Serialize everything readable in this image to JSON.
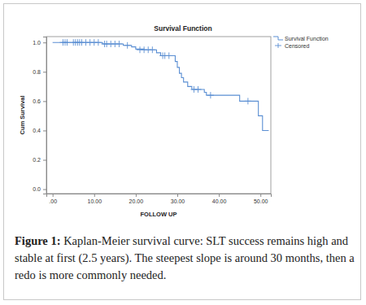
{
  "chart_data": {
    "type": "line",
    "title": "Survival Function",
    "x_label": "FOLLOW UP",
    "y_label": "Cum Survival",
    "xlim": [
      -1.5,
      52.5
    ],
    "ylim": [
      -0.03,
      1.04
    ],
    "xticks": [
      {
        "value": 0,
        "label": ".00"
      },
      {
        "value": 10,
        "label": "10.00"
      },
      {
        "value": 20,
        "label": "20.00"
      },
      {
        "value": 30,
        "label": "30.00"
      },
      {
        "value": 40,
        "label": "40.00"
      },
      {
        "value": 50,
        "label": "50.00"
      }
    ],
    "yticks": [
      {
        "value": 0,
        "label": "0.0"
      },
      {
        "value": 0.2,
        "label": "0.2"
      },
      {
        "value": 0.4,
        "label": "0.4"
      },
      {
        "value": 0.6,
        "label": "0.6"
      },
      {
        "value": 0.8,
        "label": "0.8"
      },
      {
        "value": 1,
        "label": "1.0"
      }
    ],
    "grid": false,
    "legend": "right",
    "series": [
      {
        "name": "Survival Function",
        "type": "line",
        "line_style": "step",
        "color": "#5b8fd3",
        "x": [
          0,
          12,
          17,
          19,
          20,
          22,
          25,
          26,
          29.5,
          30,
          30.5,
          31,
          31.5,
          32.5,
          33.5,
          36.5,
          37,
          45,
          49.5,
          50.5,
          52
        ],
        "values": [
          1,
          0.99,
          0.98,
          0.97,
          0.955,
          0.95,
          0.93,
          0.91,
          0.87,
          0.83,
          0.79,
          0.76,
          0.73,
          0.7,
          0.68,
          0.66,
          0.64,
          0.6,
          0.5,
          0.4,
          0.4
        ]
      },
      {
        "name": "Censored",
        "type": "scatter",
        "marker": "plus",
        "color": "#5b8fd3",
        "x": [
          2.5,
          3,
          3.5,
          5,
          5.5,
          6,
          6.5,
          7,
          8,
          9,
          10,
          11,
          12.5,
          13,
          14,
          15,
          16,
          18,
          21,
          22,
          23,
          24,
          26.5,
          27,
          28,
          34,
          35,
          38,
          47
        ],
        "values": [
          1,
          1,
          1,
          1,
          1,
          1,
          1,
          1,
          1,
          1,
          1,
          1,
          0.99,
          0.99,
          0.99,
          0.99,
          0.99,
          0.98,
          0.95,
          0.95,
          0.95,
          0.95,
          0.91,
          0.91,
          0.91,
          0.68,
          0.68,
          0.64,
          0.6
        ]
      }
    ]
  },
  "caption": {
    "label": "Figure 1:",
    "text": "Kaplan-Meier survival curve: SLT success remains high and stable at first (2.5 years). The steepest slope is around 30 months, then a redo is more commonly needed."
  }
}
